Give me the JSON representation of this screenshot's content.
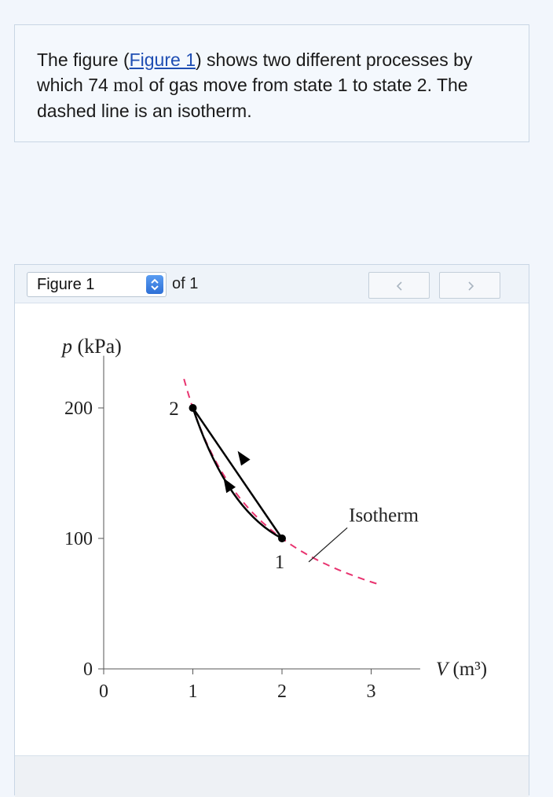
{
  "problem": {
    "text_before_link": "The figure (",
    "link_label": "Figure 1",
    "text_after_link": ") shows two different processes by which 74 ",
    "unit": "mol",
    "text_end": " of gas move from state 1 to state 2. The dashed line is an isotherm."
  },
  "viewer": {
    "selected_figure": "Figure 1",
    "of_label": "of 1",
    "icons": {
      "select": "select-arrows-icon",
      "prev": "chevron-left-icon",
      "next": "chevron-right-icon"
    }
  },
  "chart_data": {
    "type": "line",
    "xlabel": "V (m³)",
    "ylabel": "p (kPa)",
    "xlim": [
      0,
      3.3
    ],
    "ylim": [
      0,
      240
    ],
    "x_ticks": [
      0,
      1,
      2,
      3
    ],
    "y_ticks": [
      0,
      100,
      200
    ],
    "x_tick_labels": [
      "0",
      "1",
      "2",
      "3"
    ],
    "y_tick_labels": [
      "0",
      "100",
      "200"
    ],
    "grid": false,
    "colors": {
      "isotherm": "#e8336f",
      "process": "#000000"
    },
    "states": [
      {
        "label": "1",
        "V": 2,
        "p": 100
      },
      {
        "label": "2",
        "V": 1,
        "p": 200
      }
    ],
    "isotherm": {
      "label": "Isotherm",
      "pV": 200,
      "V_range": [
        0.9,
        3.1
      ],
      "style": "dashed"
    },
    "processes": [
      {
        "from": "1",
        "to": "2",
        "shape": "straight"
      },
      {
        "from": "1",
        "to": "2",
        "shape": "curved-below"
      }
    ]
  }
}
